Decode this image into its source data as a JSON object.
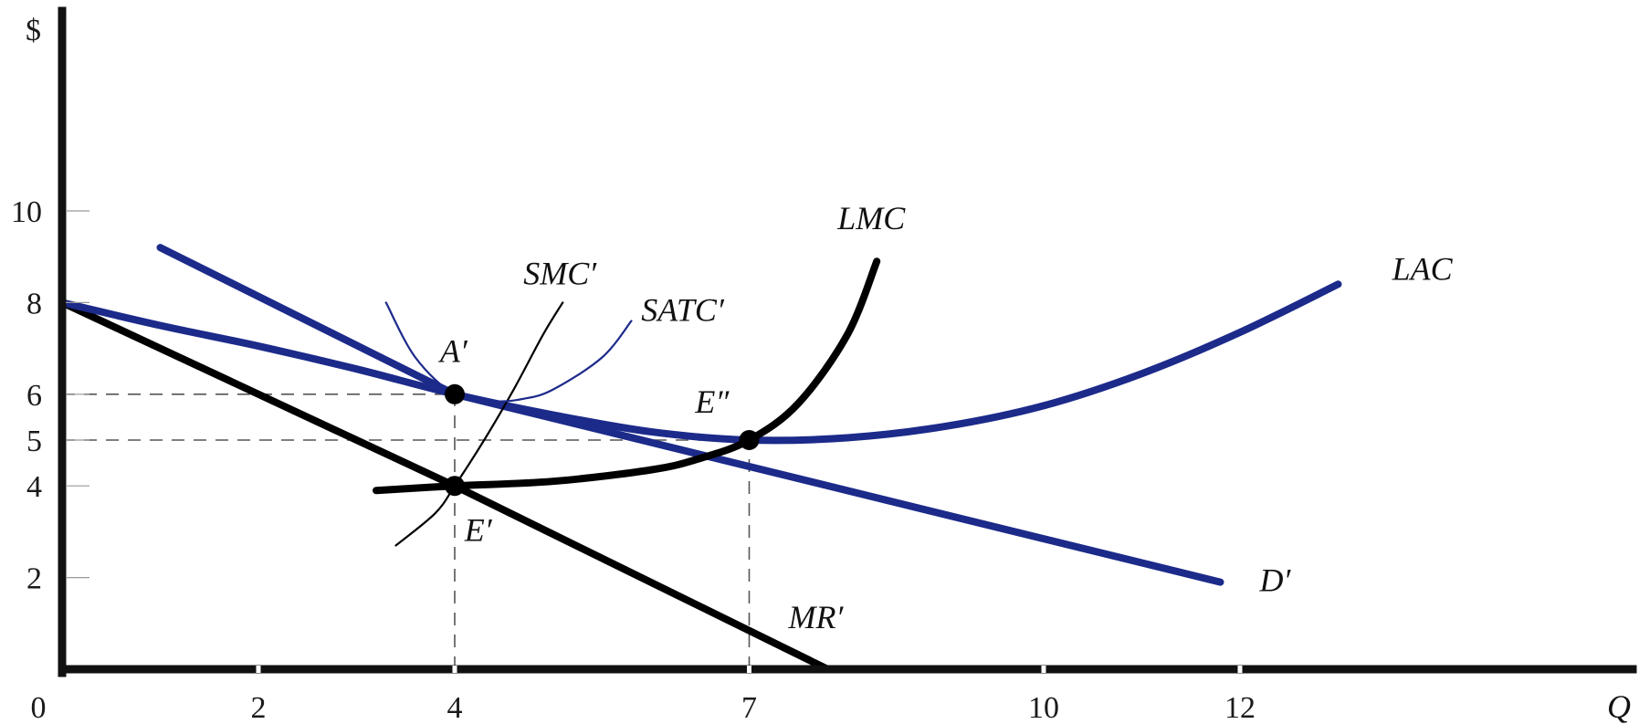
{
  "chart_data": {
    "type": "line",
    "xlabel": "Q",
    "ylabel": "$",
    "origin_label": "0",
    "xlim": [
      0,
      13.5
    ],
    "ylim": [
      0,
      12
    ],
    "xticks": [
      2,
      4,
      7,
      10,
      12
    ],
    "yticks": [
      2,
      4,
      5,
      6,
      8,
      10
    ],
    "grid": false,
    "series": [
      {
        "name": "D′",
        "color": "#1c2a8a",
        "weight": "heavy",
        "x": [
          1,
          4,
          11.8
        ],
        "y": [
          9.2,
          6,
          1.9
        ]
      },
      {
        "name": "MR′",
        "color": "#000000",
        "weight": "heavy",
        "x": [
          0,
          4,
          7.8
        ],
        "y": [
          8,
          4,
          0
        ]
      },
      {
        "name": "LAC",
        "color": "#1c2a8a",
        "weight": "heavy",
        "x": [
          0,
          1,
          2,
          3,
          4,
          5,
          6,
          7,
          8,
          9,
          10,
          11,
          12,
          13
        ],
        "y": [
          8,
          7.5,
          7.05,
          6.55,
          6,
          5.55,
          5.18,
          5,
          5.05,
          5.3,
          5.75,
          6.45,
          7.35,
          8.4
        ]
      },
      {
        "name": "LMC",
        "color": "#000000",
        "weight": "heavy",
        "x": [
          3.2,
          4,
          5,
          6,
          6.5,
          7,
          7.5,
          8,
          8.3
        ],
        "y": [
          3.9,
          4,
          4.1,
          4.35,
          4.6,
          5,
          5.8,
          7.3,
          8.9
        ]
      },
      {
        "name": "SMC′",
        "color": "#000000",
        "weight": "thin",
        "x": [
          3.4,
          3.8,
          4,
          4.3,
          4.6,
          4.9,
          5.1
        ],
        "y": [
          2.7,
          3.4,
          4,
          5,
          6.1,
          7.3,
          8
        ]
      },
      {
        "name": "SATC′",
        "color": "#1c2a8a",
        "weight": "thin",
        "x": [
          3.3,
          3.6,
          4,
          4.4,
          4.7,
          5,
          5.5,
          5.8
        ],
        "y": [
          8,
          6.8,
          6,
          5.85,
          5.9,
          6.1,
          6.8,
          7.6
        ]
      }
    ],
    "points": [
      {
        "label": "A′",
        "x": 4,
        "y": 6
      },
      {
        "label": "E′",
        "x": 4,
        "y": 4
      },
      {
        "label": "E″",
        "x": 7,
        "y": 5
      }
    ],
    "guides": [
      {
        "from": [
          0,
          6
        ],
        "to": [
          4,
          6
        ]
      },
      {
        "from": [
          0,
          5
        ],
        "to": [
          7,
          5
        ]
      },
      {
        "from": [
          4,
          0
        ],
        "to": [
          4,
          6
        ]
      },
      {
        "from": [
          7,
          0
        ],
        "to": [
          7,
          5
        ]
      }
    ],
    "annotations": [
      {
        "text": "D′",
        "x": 12.2,
        "y": 1.7
      },
      {
        "text": "MR′",
        "x": 7.4,
        "y": 0.9
      },
      {
        "text": "LAC",
        "x": 13.55,
        "y": 8.5
      },
      {
        "text": "LMC",
        "x": 7.9,
        "y": 9.6
      },
      {
        "text": "SMC′",
        "x": 4.7,
        "y": 8.4
      },
      {
        "text": "SATC′",
        "x": 5.9,
        "y": 7.6
      },
      {
        "text": "A′",
        "x": 3.85,
        "y": 6.7
      },
      {
        "text": "E′",
        "x": 4.1,
        "y": 2.8
      },
      {
        "text": "E″",
        "x": 6.45,
        "y": 5.6
      }
    ]
  }
}
